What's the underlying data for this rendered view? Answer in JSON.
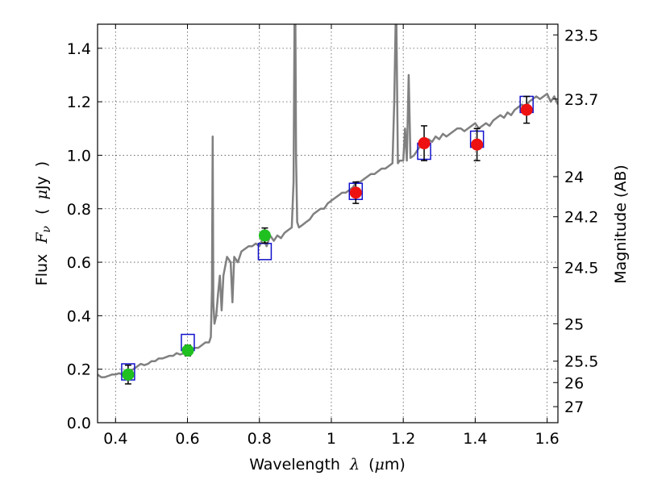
{
  "chart_data": {
    "type": "scatter",
    "xlabel": {
      "prefix": "Wavelength",
      "symbol": "λ",
      "units_open": "(",
      "units_mu": "μ",
      "units_rest": "m)"
    },
    "ylabel": {
      "prefix": "Flux",
      "symbol": "F",
      "subscript": "ν",
      "units_open": "(",
      "units_mu": "μ",
      "units_rest": "Jy",
      "units_close": ")"
    },
    "y2label": "Magnitude (AB)",
    "xlim": [
      0.35,
      1.63
    ],
    "ylim": [
      0.0,
      1.49
    ],
    "grid": true,
    "x_ticks": [
      0.4,
      0.6,
      0.8,
      1.0,
      1.2,
      1.4,
      1.6
    ],
    "x_tick_labels": [
      "0.4",
      "0.6",
      "0.8",
      "1",
      "1.2",
      "1.4",
      "1.6"
    ],
    "y_ticks": [
      0.0,
      0.2,
      0.4,
      0.6,
      0.8,
      1.0,
      1.2,
      1.4
    ],
    "y_tick_labels": [
      "0.0",
      "0.2",
      "0.4",
      "0.6",
      "0.8",
      "1.0",
      "1.2",
      "1.4"
    ],
    "right_axis_ticks": [
      {
        "label": "23.5",
        "flux": 1.45
      },
      {
        "label": "23.7",
        "flux": 1.21
      },
      {
        "label": "24",
        "flux": 0.92
      },
      {
        "label": "24.2",
        "flux": 0.77
      },
      {
        "label": "24.5",
        "flux": 0.58
      },
      {
        "label": "25",
        "flux": 0.37
      },
      {
        "label": "25.5",
        "flux": 0.23
      },
      {
        "label": "26",
        "flux": 0.15
      },
      {
        "label": "27",
        "flux": 0.06
      }
    ],
    "colors": {
      "model": "#808080",
      "green": "#20c020",
      "red": "#ee1111",
      "model_box": "#1111cc",
      "errorbar": "#000000",
      "grid": "#555555"
    },
    "model_spectrum": {
      "x": [
        0.35,
        0.36,
        0.37,
        0.38,
        0.39,
        0.4,
        0.41,
        0.42,
        0.43,
        0.44,
        0.45,
        0.46,
        0.47,
        0.48,
        0.49,
        0.5,
        0.51,
        0.52,
        0.53,
        0.54,
        0.55,
        0.56,
        0.57,
        0.58,
        0.59,
        0.6,
        0.61,
        0.62,
        0.63,
        0.64,
        0.65,
        0.66,
        0.665,
        0.668,
        0.67,
        0.672,
        0.675,
        0.68,
        0.685,
        0.69,
        0.695,
        0.7,
        0.71,
        0.72,
        0.725,
        0.73,
        0.74,
        0.75,
        0.76,
        0.77,
        0.78,
        0.79,
        0.8,
        0.81,
        0.82,
        0.83,
        0.84,
        0.85,
        0.86,
        0.87,
        0.88,
        0.89,
        0.895,
        0.898,
        0.9,
        0.902,
        0.905,
        0.91,
        0.92,
        0.93,
        0.94,
        0.95,
        0.96,
        0.97,
        0.98,
        0.99,
        1.0,
        1.01,
        1.02,
        1.03,
        1.04,
        1.05,
        1.06,
        1.07,
        1.08,
        1.09,
        1.1,
        1.11,
        1.12,
        1.13,
        1.14,
        1.15,
        1.16,
        1.17,
        1.175,
        1.18,
        1.185,
        1.19,
        1.2,
        1.205,
        1.21,
        1.215,
        1.22,
        1.23,
        1.24,
        1.25,
        1.26,
        1.27,
        1.28,
        1.29,
        1.3,
        1.31,
        1.32,
        1.33,
        1.34,
        1.35,
        1.36,
        1.37,
        1.38,
        1.39,
        1.4,
        1.41,
        1.42,
        1.43,
        1.44,
        1.45,
        1.46,
        1.47,
        1.48,
        1.49,
        1.5,
        1.51,
        1.52,
        1.53,
        1.54,
        1.55,
        1.56,
        1.57,
        1.58,
        1.59,
        1.6,
        1.61,
        1.62,
        1.63
      ],
      "y": [
        0.18,
        0.17,
        0.17,
        0.175,
        0.18,
        0.18,
        0.185,
        0.18,
        0.19,
        0.195,
        0.2,
        0.21,
        0.22,
        0.215,
        0.22,
        0.23,
        0.23,
        0.24,
        0.24,
        0.245,
        0.25,
        0.25,
        0.26,
        0.255,
        0.26,
        0.27,
        0.27,
        0.28,
        0.28,
        0.29,
        0.3,
        0.3,
        0.32,
        0.5,
        1.07,
        0.45,
        0.37,
        0.4,
        0.48,
        0.55,
        0.42,
        0.55,
        0.62,
        0.6,
        0.45,
        0.62,
        0.6,
        0.64,
        0.65,
        0.66,
        0.66,
        0.67,
        0.66,
        0.69,
        0.66,
        0.7,
        0.68,
        0.7,
        0.69,
        0.71,
        0.72,
        0.73,
        0.9,
        1.6,
        1.49,
        1.0,
        0.75,
        0.73,
        0.74,
        0.75,
        0.76,
        0.78,
        0.79,
        0.8,
        0.8,
        0.82,
        0.83,
        0.84,
        0.85,
        0.86,
        0.86,
        0.87,
        0.88,
        0.9,
        0.9,
        0.91,
        0.92,
        0.93,
        0.93,
        0.94,
        0.95,
        0.95,
        0.96,
        0.97,
        1.2,
        1.6,
        0.97,
        0.98,
        0.98,
        1.1,
        0.98,
        1.3,
        0.99,
        1.0,
        1.02,
        1.04,
        1.05,
        1.06,
        1.05,
        1.07,
        1.06,
        1.08,
        1.07,
        1.08,
        1.09,
        1.1,
        1.1,
        1.09,
        1.1,
        1.11,
        1.12,
        1.1,
        1.11,
        1.12,
        1.11,
        1.13,
        1.14,
        1.15,
        1.14,
        1.16,
        1.15,
        1.17,
        1.18,
        1.19,
        1.18,
        1.2,
        1.21,
        1.22,
        1.21,
        1.22,
        1.23,
        1.2,
        1.22,
        1.19
      ]
    },
    "model_boxes": [
      {
        "x": 0.435,
        "y": 0.19
      },
      {
        "x": 0.601,
        "y": 0.3
      },
      {
        "x": 0.815,
        "y": 0.64
      },
      {
        "x": 1.068,
        "y": 0.865
      },
      {
        "x": 1.258,
        "y": 1.015
      },
      {
        "x": 1.405,
        "y": 1.06
      },
      {
        "x": 1.543,
        "y": 1.19
      }
    ],
    "observed_points": [
      {
        "x": 0.435,
        "y": 0.18,
        "err": 0.035,
        "color": "green"
      },
      {
        "x": 0.601,
        "y": 0.27,
        "err": 0.02,
        "color": "green"
      },
      {
        "x": 0.815,
        "y": 0.7,
        "err": 0.028,
        "color": "green"
      },
      {
        "x": 1.068,
        "y": 0.86,
        "err": 0.04,
        "color": "red"
      },
      {
        "x": 1.258,
        "y": 1.045,
        "err": 0.065,
        "color": "red"
      },
      {
        "x": 1.405,
        "y": 1.04,
        "err": 0.06,
        "color": "red"
      },
      {
        "x": 1.543,
        "y": 1.17,
        "err": 0.05,
        "color": "red"
      }
    ]
  }
}
